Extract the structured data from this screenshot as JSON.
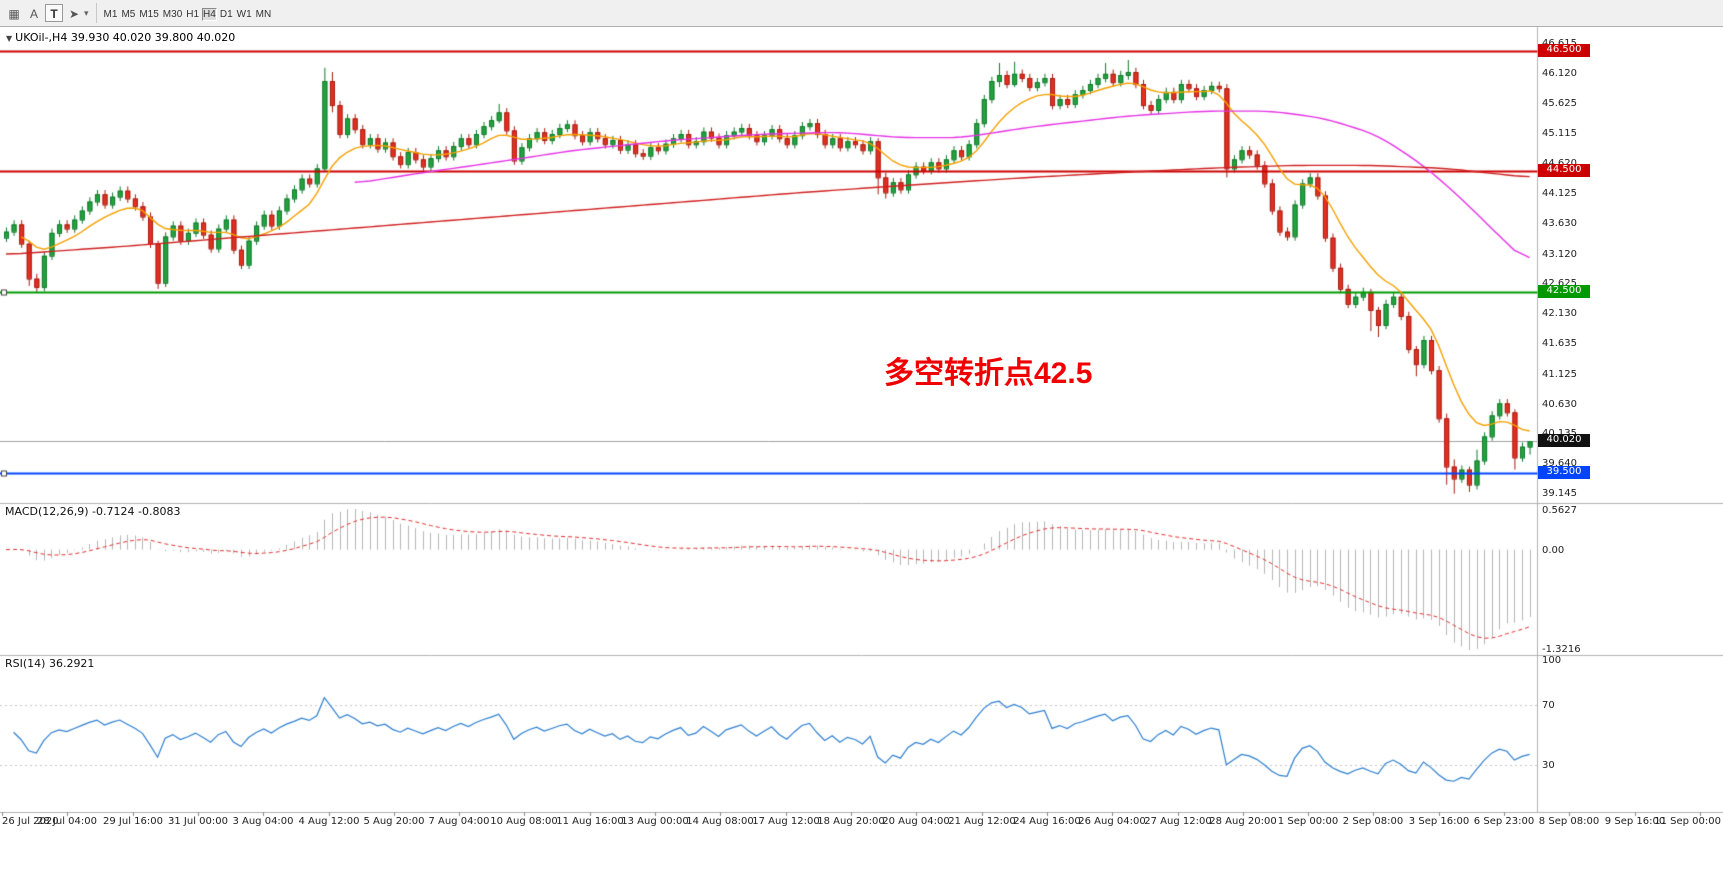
{
  "toolbar": {
    "icons": [
      {
        "name": "grid-icon",
        "glyph": "▦",
        "boxed": false
      },
      {
        "name": "font-a-icon",
        "glyph": "A",
        "boxed": false
      },
      {
        "name": "text-tool-icon",
        "glyph": "T",
        "boxed": true
      },
      {
        "name": "cursor-tool-icon",
        "glyph": "➤",
        "boxed": false
      }
    ],
    "caret_glyph": "▾",
    "timeframes": [
      "M1",
      "M5",
      "M15",
      "M30",
      "H1",
      "H4",
      "D1",
      "W1",
      "MN"
    ],
    "selected_timeframe": "H4"
  },
  "chart": {
    "collapse_glyph": "▼",
    "header": "UKOil-,H4 39.930 40.020 39.800 40.020",
    "annotation": "多空转折点42.5",
    "annotation_color": "#f00000",
    "price_axis_labels": [
      "46.615",
      "46.120",
      "45.625",
      "45.115",
      "44.620",
      "44.125",
      "43.630",
      "43.120",
      "42.625",
      "42.130",
      "41.635",
      "41.125",
      "40.630",
      "40.135",
      "39.640",
      "39.145"
    ]
  },
  "macd_panel": {
    "title": "MACD(12,26,9) -0.7124 -0.8083",
    "labels": [
      "0.5627",
      "0.00",
      "-1.3216"
    ]
  },
  "rsi_panel": {
    "title": "RSI(14) 36.2921",
    "labels": [
      "100",
      "70",
      "30"
    ]
  },
  "chart_data": {
    "type": "candlestick",
    "symbol": "UKOil-",
    "timeframe": "H4",
    "last_ohlc": {
      "open": 39.93,
      "high": 40.02,
      "low": 39.8,
      "close": 40.02
    },
    "y_range": [
      39.145,
      46.615
    ],
    "x_labels": [
      "26 Jul 2020",
      "28 Jul 04:00",
      "29 Jul 16:00",
      "31 Jul 00:00",
      "3 Aug 04:00",
      "4 Aug 12:00",
      "5 Aug 20:00",
      "7 Aug 04:00",
      "10 Aug 08:00",
      "11 Aug 16:00",
      "13 Aug 00:00",
      "14 Aug 08:00",
      "17 Aug 12:00",
      "18 Aug 20:00",
      "20 Aug 04:00",
      "21 Aug 12:00",
      "24 Aug 16:00",
      "26 Aug 04:00",
      "27 Aug 12:00",
      "28 Aug 20:00",
      "1 Sep 00:00",
      "2 Sep 08:00",
      "3 Sep 16:00",
      "6 Sep 23:00",
      "8 Sep 08:00",
      "9 Sep 16:00",
      "11 Sep 00:00"
    ],
    "first_open": 43.4,
    "closes": [
      43.5,
      43.62,
      43.3,
      42.72,
      42.58,
      43.1,
      43.48,
      43.62,
      43.55,
      43.7,
      43.85,
      44.0,
      44.12,
      43.95,
      44.08,
      44.18,
      44.05,
      43.92,
      43.75,
      43.3,
      42.65,
      43.42,
      43.6,
      43.35,
      43.48,
      43.65,
      43.45,
      43.22,
      43.55,
      43.7,
      43.2,
      42.95,
      43.35,
      43.6,
      43.78,
      43.6,
      43.85,
      44.05,
      44.2,
      44.38,
      44.3,
      44.55,
      46.0,
      45.6,
      45.12,
      45.38,
      45.2,
      44.95,
      45.05,
      44.88,
      44.98,
      44.75,
      44.62,
      44.82,
      44.7,
      44.58,
      44.72,
      44.85,
      44.75,
      44.92,
      45.05,
      44.95,
      45.12,
      45.25,
      45.35,
      45.48,
      45.18,
      44.68,
      44.9,
      45.05,
      45.15,
      45.02,
      45.12,
      45.22,
      45.28,
      45.1,
      45.0,
      45.15,
      45.05,
      44.95,
      45.02,
      44.86,
      44.95,
      44.8,
      44.76,
      44.9,
      44.85,
      44.96,
      45.05,
      45.12,
      44.95,
      45.0,
      45.16,
      45.06,
      44.95,
      45.1,
      45.16,
      45.22,
      45.1,
      45.0,
      45.1,
      45.2,
      45.05,
      44.95,
      45.1,
      45.25,
      45.3,
      45.12,
      44.95,
      45.05,
      44.9,
      45.0,
      44.95,
      44.85,
      45.0,
      44.4,
      44.15,
      44.32,
      44.2,
      44.45,
      44.58,
      44.52,
      44.65,
      44.55,
      44.7,
      44.85,
      44.75,
      44.95,
      45.3,
      45.7,
      46.0,
      46.1,
      45.95,
      46.12,
      46.05,
      45.9,
      45.98,
      46.05,
      45.6,
      45.7,
      45.62,
      45.78,
      45.85,
      45.95,
      46.05,
      46.12,
      45.98,
      46.1,
      46.15,
      45.95,
      45.6,
      45.52,
      45.7,
      45.82,
      45.7,
      45.95,
      45.88,
      45.75,
      45.85,
      45.92,
      45.88,
      44.55,
      44.7,
      44.85,
      44.78,
      44.6,
      44.3,
      43.85,
      43.5,
      43.42,
      43.95,
      44.3,
      44.4,
      44.1,
      43.4,
      42.9,
      42.55,
      42.3,
      42.42,
      42.5,
      42.2,
      41.95,
      42.3,
      42.42,
      42.1,
      41.55,
      41.3,
      41.7,
      41.2,
      40.4,
      39.6,
      39.4,
      39.55,
      39.3,
      39.7,
      40.1,
      40.45,
      40.65,
      40.5,
      39.75,
      39.93,
      40.02
    ],
    "wick_overrides": {
      "3": [
        43.35,
        42.6
      ],
      "4": [
        42.8,
        42.5
      ],
      "20": [
        43.35,
        42.55
      ],
      "42": [
        46.22,
        44.5
      ],
      "43": [
        46.15,
        45.48
      ],
      "65": [
        45.62,
        45.3
      ],
      "115": [
        45.05,
        44.12
      ],
      "116": [
        44.48,
        44.05
      ],
      "131": [
        46.3,
        45.9
      ],
      "133": [
        46.32,
        45.9
      ],
      "145": [
        46.3,
        45.98
      ],
      "148": [
        46.35,
        46.02
      ],
      "161": [
        45.95,
        44.4
      ],
      "180": [
        42.55,
        41.85
      ],
      "181": [
        42.25,
        41.75
      ],
      "186": [
        41.6,
        41.1
      ],
      "190": [
        40.48,
        39.3
      ],
      "191": [
        39.72,
        39.15
      ],
      "193": [
        39.6,
        39.18
      ],
      "194": [
        39.88,
        39.22
      ],
      "199": [
        40.55,
        39.55
      ],
      "201": [
        40.02,
        39.8
      ]
    },
    "candle_colors": {
      "up_fill": "#23a33f",
      "up_stroke": "#127a2c",
      "down_fill": "#e33022",
      "down_stroke": "#a51e12"
    },
    "h_lines": [
      {
        "price": 46.5,
        "label": "46.500",
        "color": "#cc0000",
        "width": 2,
        "handles": false
      },
      {
        "price": 44.5,
        "label": "44.500",
        "color": "#cc0000",
        "width": 2,
        "handles": false
      },
      {
        "price": 42.5,
        "label": "42.500",
        "color": "#009900",
        "width": 2,
        "handles": true
      },
      {
        "price": 39.5,
        "label": "39.500",
        "color": "#0044ff",
        "width": 2,
        "handles": true
      }
    ],
    "current_price": {
      "value": 40.02,
      "label": "40.020",
      "badge_color": "#111111",
      "line_color": "#a0a0a0"
    },
    "ma_fast": {
      "period": 10,
      "color": "#f5a000"
    },
    "ma_mid": {
      "color": "#e632e6",
      "points": [
        [
          46,
          44.3
        ],
        [
          55,
          44.48
        ],
        [
          64,
          44.64
        ],
        [
          75,
          44.85
        ],
        [
          88,
          45.02
        ],
        [
          100,
          45.12
        ],
        [
          110,
          45.15
        ],
        [
          118,
          45.06
        ],
        [
          126,
          45.06
        ],
        [
          136,
          45.25
        ],
        [
          148,
          45.42
        ],
        [
          158,
          45.5
        ],
        [
          167,
          45.5
        ],
        [
          174,
          45.38
        ],
        [
          181,
          45.1
        ],
        [
          187,
          44.6
        ],
        [
          192,
          44.05
        ],
        [
          196,
          43.55
        ],
        [
          201,
          42.95
        ]
      ]
    },
    "ma_slow": {
      "color": "#d02020",
      "points": [
        [
          0,
          43.12
        ],
        [
          15,
          43.25
        ],
        [
          30,
          43.4
        ],
        [
          45,
          43.55
        ],
        [
          60,
          43.7
        ],
        [
          75,
          43.85
        ],
        [
          90,
          44.0
        ],
        [
          105,
          44.15
        ],
        [
          120,
          44.28
        ],
        [
          135,
          44.4
        ],
        [
          150,
          44.5
        ],
        [
          160,
          44.56
        ],
        [
          170,
          44.6
        ],
        [
          180,
          44.6
        ],
        [
          190,
          44.55
        ],
        [
          201,
          44.4
        ]
      ]
    },
    "macd": {
      "fast": 12,
      "slow": 26,
      "signal_period": 9,
      "values_shown": [
        -0.7124,
        -0.8083
      ],
      "histogram_color": "#b6b6b6",
      "signal_color": "#e03030"
    },
    "rsi": {
      "period": 14,
      "value_shown": 36.2921,
      "levels": [
        70,
        30
      ],
      "scale": [
        100,
        70,
        30
      ],
      "line_color": "#2e7fd0",
      "level_color": "#c8c8c8"
    }
  }
}
